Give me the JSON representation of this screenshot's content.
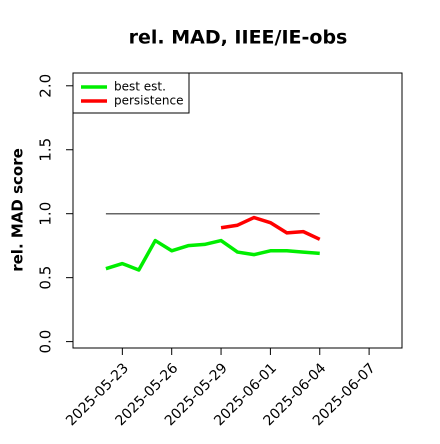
{
  "chart_data": {
    "type": "line",
    "title": "rel. MAD, IIEE/IE-obs",
    "y_label": "rel. MAD score",
    "x": [
      "2025-05-22",
      "2025-05-23",
      "2025-05-24",
      "2025-05-25",
      "2025-05-26",
      "2025-05-27",
      "2025-05-28",
      "2025-05-29",
      "2025-05-30",
      "2025-05-31",
      "2025-06-01",
      "2025-06-02",
      "2025-06-03",
      "2025-06-04"
    ],
    "series": [
      {
        "name": "best est.",
        "color": "#00ee00",
        "values": [
          0.57,
          0.61,
          0.56,
          0.79,
          0.71,
          0.75,
          0.76,
          0.79,
          0.7,
          0.68,
          0.71,
          0.71,
          0.7,
          0.69
        ]
      },
      {
        "name": "persistence",
        "color": "#ff0000",
        "values": [
          null,
          null,
          null,
          null,
          null,
          null,
          null,
          0.89,
          0.91,
          0.97,
          0.93,
          0.85,
          0.86,
          0.8
        ]
      }
    ],
    "reference_line": 1,
    "xlim": [
      "2025-05-20",
      "2025-06-09"
    ],
    "xticks": [
      "2025-05-23",
      "2025-05-26",
      "2025-05-29",
      "2025-06-01",
      "2025-06-04",
      "2025-06-07"
    ],
    "ylim": [
      -0.05,
      2.1
    ],
    "yticks": [
      {
        "value": 0,
        "label": "0.0"
      },
      {
        "value": 0.5,
        "label": "0.5"
      },
      {
        "value": 1,
        "label": "1.0"
      },
      {
        "value": 1.5,
        "label": "1.5"
      },
      {
        "value": 2,
        "label": "2.0"
      }
    ],
    "legend": "top-left"
  }
}
